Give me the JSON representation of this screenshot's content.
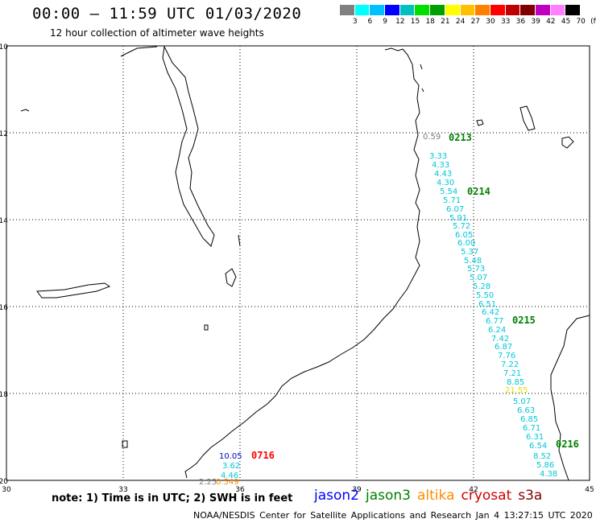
{
  "header": {
    "title": "00:00 – 11:59 UTC 01/03/2020",
    "subtitle": "12 hour collection of altimeter wave heights"
  },
  "colorbar": {
    "colors": [
      "#808080",
      "#00ffff",
      "#00c0ff",
      "#0000ff",
      "#00c0c0",
      "#00e000",
      "#00a000",
      "#ffff00",
      "#ffc000",
      "#ff8000",
      "#ff0000",
      "#c00000",
      "#800000",
      "#c000c0",
      "#ff80ff",
      "#000000"
    ],
    "labels": [
      "3",
      "6",
      "9",
      "12",
      "15",
      "18",
      "21",
      "24",
      "27",
      "30",
      "33",
      "36",
      "39",
      "42",
      "45",
      "70",
      "(ft)"
    ]
  },
  "axes": {
    "lat_labels": [
      "-10",
      "-12",
      "-14",
      "-16",
      "-18",
      "-20"
    ],
    "lon_labels": [
      "30",
      "33",
      "36",
      "39",
      "42",
      "45"
    ]
  },
  "passes": [
    {
      "label": "0213",
      "color": "#008000"
    },
    {
      "label": "0214",
      "color": "#008000"
    },
    {
      "label": "0215",
      "color": "#008000"
    },
    {
      "label": "0216",
      "color": "#008000"
    },
    {
      "label": "0716",
      "color": "#ff0000"
    }
  ],
  "observations": [
    {
      "text": "0.59",
      "color": "#808080"
    },
    {
      "text": "3.33",
      "color": "#00c8d8"
    },
    {
      "text": "4.33",
      "color": "#00c8d8"
    },
    {
      "text": "4.43",
      "color": "#00c8d8"
    },
    {
      "text": "4.30",
      "color": "#00c8d8"
    },
    {
      "text": "5.54",
      "color": "#00c8d8"
    },
    {
      "text": "5.71",
      "color": "#00c8d8"
    },
    {
      "text": "6.07",
      "color": "#00c8d8"
    },
    {
      "text": "5.91",
      "color": "#00c8d8"
    },
    {
      "text": "5.72",
      "color": "#00c8d8"
    },
    {
      "text": "6.05",
      "color": "#00c8d8"
    },
    {
      "text": "6.00",
      "color": "#00c8d8"
    },
    {
      "text": "5.37",
      "color": "#00c8d8"
    },
    {
      "text": "5.48",
      "color": "#00c8d8"
    },
    {
      "text": "5.73",
      "color": "#00c8d8"
    },
    {
      "text": "5.07",
      "color": "#00c8d8"
    },
    {
      "text": "5.28",
      "color": "#00c8d8"
    },
    {
      "text": "5.50",
      "color": "#00c8d8"
    },
    {
      "text": "6.51",
      "color": "#00c8d8"
    },
    {
      "text": "6.42",
      "color": "#00c8d8"
    },
    {
      "text": "6.77",
      "color": "#00c8d8"
    },
    {
      "text": "6.24",
      "color": "#00c8d8"
    },
    {
      "text": "7.42",
      "color": "#00c8d8"
    },
    {
      "text": "6.87",
      "color": "#00c8d8"
    },
    {
      "text": "7.76",
      "color": "#00c8d8"
    },
    {
      "text": "7.22",
      "color": "#00c8d8"
    },
    {
      "text": "7.21",
      "color": "#00c8d8"
    },
    {
      "text": "8.85",
      "color": "#00c8d8"
    },
    {
      "text": "21.55",
      "color": "#e0e000"
    },
    {
      "text": "5.07",
      "color": "#00c8d8"
    },
    {
      "text": "6.63",
      "color": "#00c8d8"
    },
    {
      "text": "6.85",
      "color": "#00c8d8"
    },
    {
      "text": "6.71",
      "color": "#00c8d8"
    },
    {
      "text": "6.31",
      "color": "#00c8d8"
    },
    {
      "text": "6.54",
      "color": "#00c8d8"
    },
    {
      "text": "8.52",
      "color": "#00c8d8"
    },
    {
      "text": "5.86",
      "color": "#00c8d8"
    },
    {
      "text": "4.38",
      "color": "#00c8d8"
    },
    {
      "text": "10.05",
      "color": "#0000c0"
    },
    {
      "text": "3.62",
      "color": "#00c8d8"
    },
    {
      "text": "4.46",
      "color": "#00c8d8"
    },
    {
      "text": "2.25",
      "color": "#808080"
    },
    {
      "text": "0.549",
      "color": "#ff8c00"
    }
  ],
  "footer": {
    "note": "note: 1) Time is in UTC; 2) SWH is in feet",
    "satellites": [
      {
        "name": "jason2",
        "color": "#0000ff"
      },
      {
        "name": "jason3",
        "color": "#008000"
      },
      {
        "name": "altika",
        "color": "#ff8c00"
      },
      {
        "name": "cryosat",
        "color": "#d00000"
      },
      {
        "name": "s3a",
        "color": "#800000"
      }
    ],
    "credit": "NOAA/NESDIS Center for Satellite Applications and Research   Jan  4 13:27:15 UTC 2020"
  }
}
